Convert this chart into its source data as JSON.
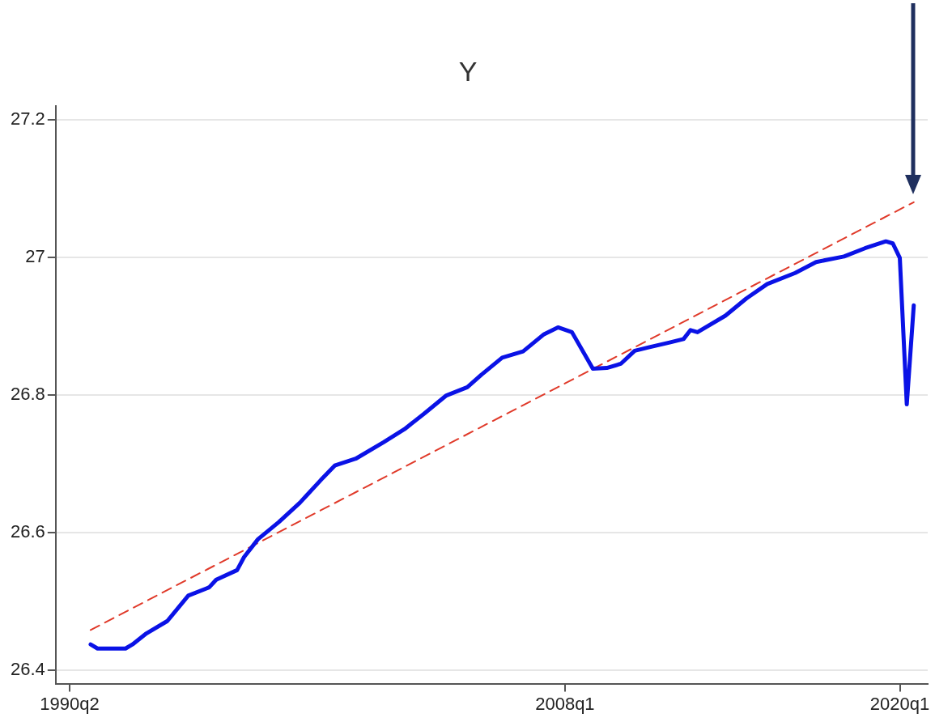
{
  "chart_data": {
    "type": "line",
    "title": "Y",
    "xlim": [
      "1989-10",
      "2021-01"
    ],
    "xticks": [
      {
        "value": "1990-04",
        "label": "1990q2"
      },
      {
        "value": "2008-01",
        "label": "2008q1"
      },
      {
        "value": "2020-01",
        "label": "2020q1"
      }
    ],
    "ylim": [
      26.38,
      27.22
    ],
    "yticks": [
      26.4,
      26.6,
      26.8,
      27,
      27.2
    ],
    "grid": "y",
    "marker": "none",
    "series": [
      {
        "color": "#0a12e6",
        "line_style": "solid",
        "x": [
          "1991-01",
          "1991-04",
          "1992-04",
          "1992-07",
          "1993-01",
          "1993-10",
          "1994-07",
          "1995-04",
          "1995-07",
          "1996-04",
          "1996-07",
          "1997-01",
          "1997-10",
          "1998-07",
          "1998-10",
          "1999-04",
          "1999-10",
          "2000-07",
          "2001-07",
          "2002-04",
          "2003-01",
          "2003-10",
          "2004-07",
          "2005-01",
          "2005-10",
          "2006-07",
          "2007-04",
          "2007-10",
          "2008-04",
          "2009-01",
          "2009-07",
          "2010-01",
          "2010-07",
          "2011-01",
          "2011-10",
          "2012-04",
          "2012-07",
          "2012-10",
          "2013-10",
          "2014-07",
          "2015-04",
          "2016-04",
          "2017-01",
          "2018-01",
          "2018-10",
          "2019-07",
          "2019-10",
          "2020-01",
          "2020-04",
          "2020-07"
        ],
        "values": [
          26.437,
          26.431,
          26.431,
          26.437,
          26.453,
          26.471,
          26.508,
          26.52,
          26.531,
          26.545,
          26.564,
          26.59,
          26.615,
          26.643,
          26.654,
          26.676,
          26.697,
          26.707,
          26.731,
          26.75,
          26.774,
          26.799,
          26.811,
          26.829,
          26.854,
          26.863,
          26.888,
          26.898,
          26.891,
          26.838,
          26.839,
          26.845,
          26.864,
          26.869,
          26.876,
          26.881,
          26.894,
          26.891,
          26.915,
          26.94,
          26.961,
          26.977,
          26.993,
          27.001,
          27.013,
          27.023,
          27.02,
          26.999,
          26.786,
          26.93
        ]
      },
      {
        "color": "#e03a2a",
        "line_style": "dashed",
        "x": [
          "1991-01",
          "2020-07"
        ],
        "values": [
          26.458,
          27.08
        ]
      }
    ]
  }
}
